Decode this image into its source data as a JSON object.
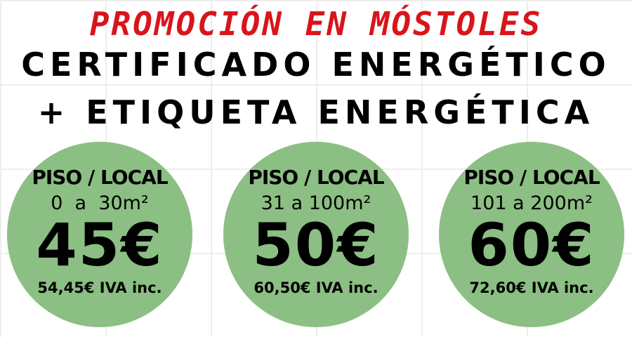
{
  "header": {
    "promo": "PROMOCIÓN EN MÓSTOLES",
    "line1": "CERTIFICADO ENERGÉTICO",
    "line2": "+ ETIQUETA ENERGÉTICA"
  },
  "colors": {
    "promo": "#d8151b",
    "circle": "#8cbf83"
  },
  "offers": [
    {
      "type": "PISO / LOCAL",
      "range": "0  a  30m²",
      "price": "45€",
      "iva": "54,45€ IVA inc."
    },
    {
      "type": "PISO / LOCAL",
      "range": "31 a 100m²",
      "price": "50€",
      "iva": "60,50€ IVA inc."
    },
    {
      "type": "PISO / LOCAL",
      "range": "101 a 200m²",
      "price": "60€",
      "iva": "72,60€ IVA inc."
    }
  ]
}
